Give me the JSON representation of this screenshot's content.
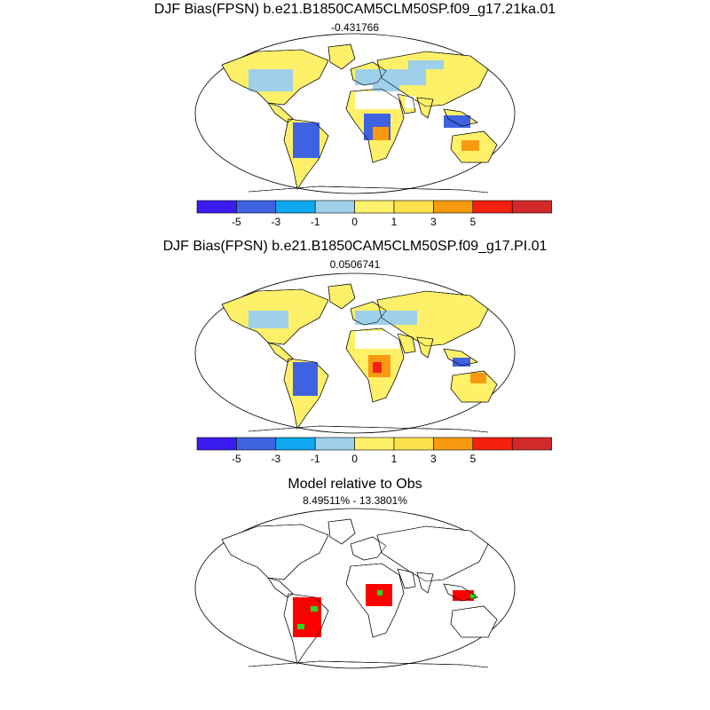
{
  "panels": [
    {
      "title": "DJF Bias(FPSN) b.e21.B1850CAM5CLM50SP.f09_g17.21ka.01",
      "subtitle": "-0.431766"
    },
    {
      "title": "DJF Bias(FPSN) b.e21.B1850CAM5CLM50SP.f09_g17.PI.01",
      "subtitle": "0.0506741"
    },
    {
      "title": "Model relative to Obs",
      "subtitle": "8.49511% - 13.3801%"
    }
  ],
  "colorbar": {
    "colors": [
      "#3a1cf0",
      "#3f63e0",
      "#0fa7f0",
      "#9fd0ea",
      "#fff06a",
      "#fbe14a",
      "#f89a10",
      "#f52010",
      "#d22a2a"
    ],
    "tick_labels": [
      "-5",
      "-3",
      "-1",
      "0",
      "1",
      "3",
      "5"
    ]
  },
  "map_colors": {
    "outline": "#000000",
    "ocean": "#ffffff",
    "green": "#22dd22",
    "red": "#ff0000"
  }
}
